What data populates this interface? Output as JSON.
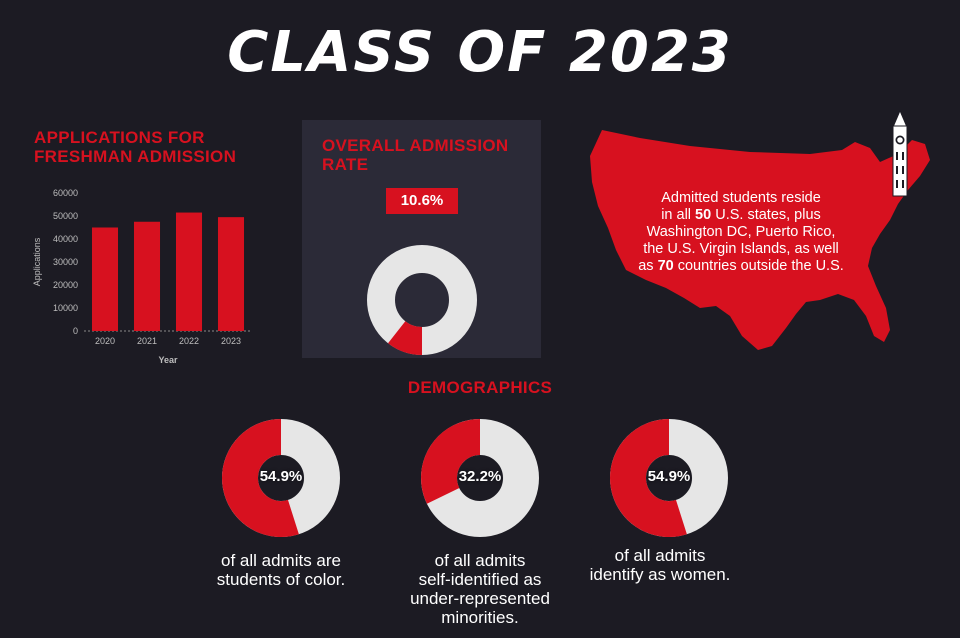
{
  "title": "CLASS OF 2023",
  "applications": {
    "title_line1": "APPLICATIONS FOR",
    "title_line2": "FRESHMAN ADMISSION"
  },
  "admission_rate": {
    "title_line1": "OVERALL ADMISSION",
    "title_line2": "RATE",
    "label": "10.6%",
    "value": 10.6
  },
  "map": {
    "line1": "Admitted students reside",
    "line2_pre": "in all ",
    "line2_bold": "50",
    "line2_post": " U.S. states, plus",
    "line3": "Washington DC, Puerto Rico,",
    "line4": "the U.S. Virgin Islands, as well",
    "line5_pre": "as ",
    "line5_bold": "70",
    "line5_post": " countries outside the U.S."
  },
  "demographics": {
    "title": "DEMOGRAPHICS",
    "items": [
      {
        "label": "54.9%",
        "value": 54.9,
        "caption_lines": [
          "of all admits are",
          "students of color."
        ]
      },
      {
        "label": "32.2%",
        "value": 32.2,
        "caption_lines": [
          "of all admits",
          "self-identified as",
          "under-represented",
          "minorities."
        ]
      },
      {
        "label": "54.9%",
        "value": 54.9,
        "caption_lines": [
          "of all admits",
          "identify as women."
        ]
      }
    ]
  },
  "colors": {
    "accent": "#d7111f",
    "track": "#e6e6e6",
    "background": "#1c1b23",
    "panel": "#2b2a37"
  },
  "chart_data": {
    "type": "bar",
    "categories": [
      "2020",
      "2021",
      "2022",
      "2023"
    ],
    "values": [
      45000,
      47500,
      51500,
      49500
    ],
    "xlabel": "Year",
    "ylabel": "Applications",
    "ylim": [
      0,
      60000
    ],
    "yticks": [
      0,
      10000,
      20000,
      30000,
      40000,
      50000,
      60000
    ],
    "grid": false
  }
}
